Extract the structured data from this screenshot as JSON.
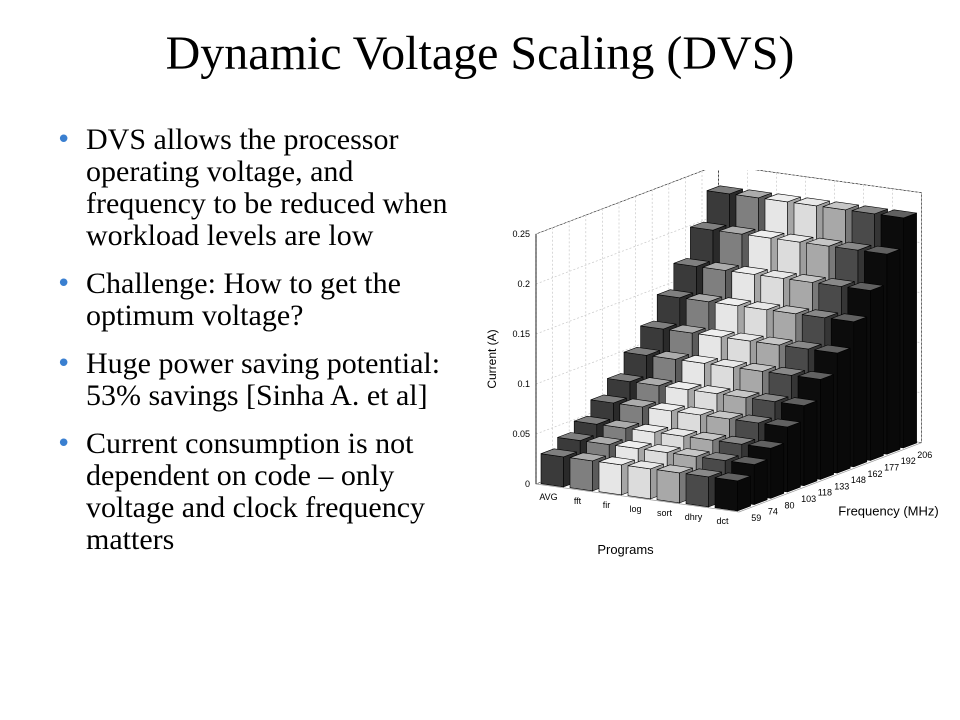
{
  "slide": {
    "title": "Dynamic Voltage Scaling (DVS)",
    "bullets": [
      "DVS allows the processor operating voltage, and frequency to be reduced when workload levels are low",
      "Challenge: How to get the optimum voltage?",
      "Huge power saving potential: 53% savings [Sinha A. et al]",
      "Current consumption is not dependent on code – only voltage and clock frequency matters"
    ]
  },
  "chart_data": {
    "type": "bar3d",
    "title": "",
    "xlabel": "Programs",
    "ylabel": "Frequency (MHz)",
    "zlabel": "Current (A)",
    "programs": [
      "AVG",
      "fft",
      "fir",
      "log",
      "sort",
      "dhry",
      "dct"
    ],
    "frequencies": [
      "59",
      "74",
      "80",
      "103",
      "118",
      "133",
      "148",
      "162",
      "177",
      "192",
      "206"
    ],
    "z_ticks": [
      "0",
      "0.05",
      "0.1",
      "0.15",
      "0.2",
      "0.25"
    ],
    "zlim": [
      0,
      0.25
    ],
    "grid": true,
    "program_colors": [
      "#3a3a3a",
      "#7f7f7f",
      "#e6e6e6",
      "#dcdcdc",
      "#a8a8a8",
      "#4a4a4a",
      "#0c0c0c"
    ],
    "current_by_frequency": [
      0.03,
      0.04,
      0.05,
      0.065,
      0.08,
      0.1,
      0.12,
      0.145,
      0.17,
      0.2,
      0.23
    ]
  }
}
